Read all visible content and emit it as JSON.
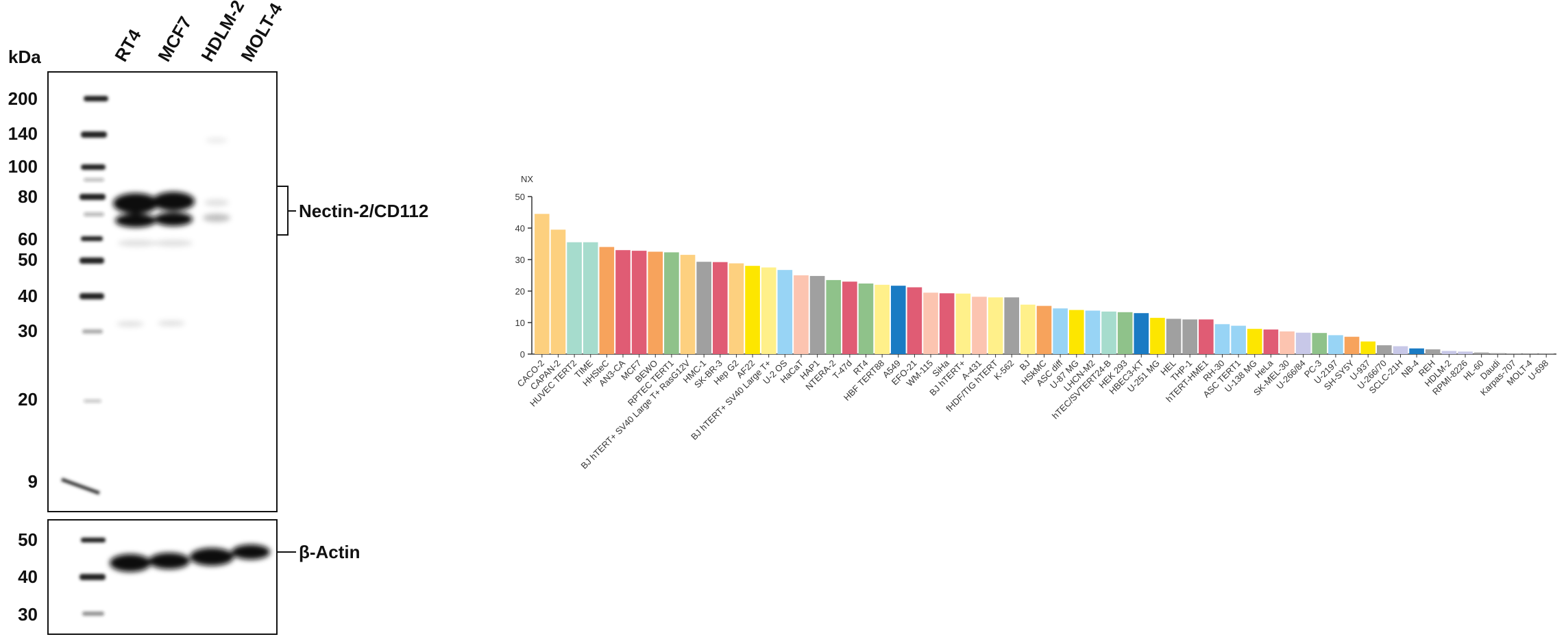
{
  "blot": {
    "unit": "kDa",
    "lanes": [
      "RT4",
      "MCF7",
      "HDLM-2",
      "MOLT-4"
    ],
    "markers_top": [
      "200",
      "140",
      "100",
      "80",
      "60",
      "50",
      "40",
      "30",
      "20",
      "9"
    ],
    "markers_bottom": [
      "50",
      "40",
      "30"
    ],
    "target": "Nectin-2/CD112",
    "control": "β-Actin"
  },
  "chart_data": {
    "type": "bar",
    "y_label": "NX",
    "ylim": [
      0,
      50
    ],
    "yticks": [
      0,
      10,
      20,
      30,
      40,
      50
    ],
    "categories": [
      "CACO-2",
      "CAPAN-2",
      "HUVEC TERT2",
      "TIME",
      "HHSteC",
      "AN3-CA",
      "MCF7",
      "BEWO",
      "RPTEC TERT1",
      "BJ hTERT+ SV40 Large T+ RasG12V",
      "HMC-1",
      "SK-BR-3",
      "Hep G2",
      "AF22",
      "BJ hTERT+ SV40 Large T+",
      "U-2 OS",
      "HaCaT",
      "HAP1",
      "NTERA-2",
      "T-47d",
      "RT4",
      "HBF TERT88",
      "A549",
      "EFO-21",
      "WM-115",
      "SiHa",
      "BJ hTERT+",
      "A-431",
      "fHDF/TIG hTERT",
      "K-562",
      "BJ",
      "HSkMC",
      "ASC diff",
      "U-87 MG",
      "LHCN-M2",
      "hTEC/SVTERT24-B",
      "HEK 293",
      "HBEC3-KT",
      "U-251 MG",
      "HEL",
      "THP-1",
      "hTERT-HME1",
      "RH-30",
      "ASC TERT1",
      "U-138 MG",
      "HeLa",
      "SK-MEL-30",
      "U-266/84",
      "PC-3",
      "U-2197",
      "SH-SY5Y",
      "U-937",
      "U-266/70",
      "SCLC-21H",
      "NB-4",
      "REH",
      "HDLM-2",
      "RPMI-8226",
      "HL-60",
      "Daudi",
      "Karpas-707",
      "MOLT-4",
      "U-698"
    ],
    "values": [
      44.5,
      39.5,
      35.5,
      35.5,
      34,
      33,
      32.8,
      32.5,
      32.3,
      31.5,
      29.3,
      29.2,
      28.8,
      28,
      27.5,
      26.7,
      25,
      24.8,
      23.5,
      23,
      22.4,
      22,
      21.7,
      21.2,
      19.5,
      19.3,
      19.2,
      18.2,
      18,
      18,
      15.7,
      15.3,
      14.5,
      14,
      13.8,
      13.5,
      13.3,
      13,
      11.5,
      11.2,
      11,
      11,
      9.5,
      9,
      8,
      7.8,
      7.2,
      6.8,
      6.7,
      6,
      5.5,
      4,
      2.8,
      2.5,
      1.8,
      1.5,
      1,
      0.8,
      0.5,
      0.3,
      0.2,
      0.1,
      0.1
    ],
    "colors": [
      "#fdd07f",
      "#fdd07f",
      "#a6dccd",
      "#a6dccd",
      "#f7a35c",
      "#e05c74",
      "#e05c74",
      "#f7a35c",
      "#8fc28a",
      "#fdd07f",
      "#a0a0a0",
      "#e05c74",
      "#fdd07f",
      "#fde600",
      "#fff08a",
      "#98d4f5",
      "#fcc4b0",
      "#a0a0a0",
      "#8fc28a",
      "#e05c74",
      "#8fc28a",
      "#fff08a",
      "#1a7bc4",
      "#e05c74",
      "#fcc4b0",
      "#e05c74",
      "#fff08a",
      "#fcc4b0",
      "#fff08a",
      "#a0a0a0",
      "#fff08a",
      "#f7a35c",
      "#98d4f5",
      "#fde600",
      "#98d4f5",
      "#a6dccd",
      "#8fc28a",
      "#1a7bc4",
      "#fde600",
      "#a0a0a0",
      "#a0a0a0",
      "#e05c74",
      "#98d4f5",
      "#98d4f5",
      "#fde600",
      "#e05c74",
      "#fcc4b0",
      "#c8c8e8",
      "#8fc28a",
      "#98d4f5",
      "#f7a35c",
      "#fde600",
      "#a0a0a0",
      "#c8c8e8",
      "#1a7bc4",
      "#a0a0a0",
      "#c8c8e8",
      "#c8c8e8",
      "#a0a0a0",
      "#a0a0a0",
      "#a0a0a0",
      "#a0a0a0",
      "#a0a0a0"
    ]
  }
}
